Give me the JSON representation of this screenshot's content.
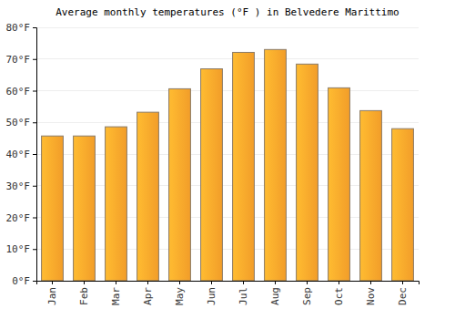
{
  "chart_data": {
    "type": "bar",
    "title": "Average monthly temperatures (°F ) in Belvedere Marittimo",
    "categories": [
      "Jan",
      "Feb",
      "Mar",
      "Apr",
      "May",
      "Jun",
      "Jul",
      "Aug",
      "Sep",
      "Oct",
      "Nov",
      "Dec"
    ],
    "values": [
      45.7,
      45.7,
      48.6,
      53.2,
      60.6,
      66.9,
      72.1,
      73.0,
      68.4,
      60.9,
      53.7,
      48.0
    ],
    "color": "#ffa62b",
    "ylim": [
      0,
      80
    ],
    "yticks": [
      {
        "value": 0,
        "label": "0°F"
      },
      {
        "value": 10,
        "label": "10°F"
      },
      {
        "value": 20,
        "label": "20°F"
      },
      {
        "value": 30,
        "label": "30°F"
      },
      {
        "value": 40,
        "label": "40°F"
      },
      {
        "value": 50,
        "label": "50°F"
      },
      {
        "value": 60,
        "label": "60°F"
      },
      {
        "value": 70,
        "label": "70°F"
      },
      {
        "value": 80,
        "label": "80°F"
      }
    ],
    "grid": true
  }
}
